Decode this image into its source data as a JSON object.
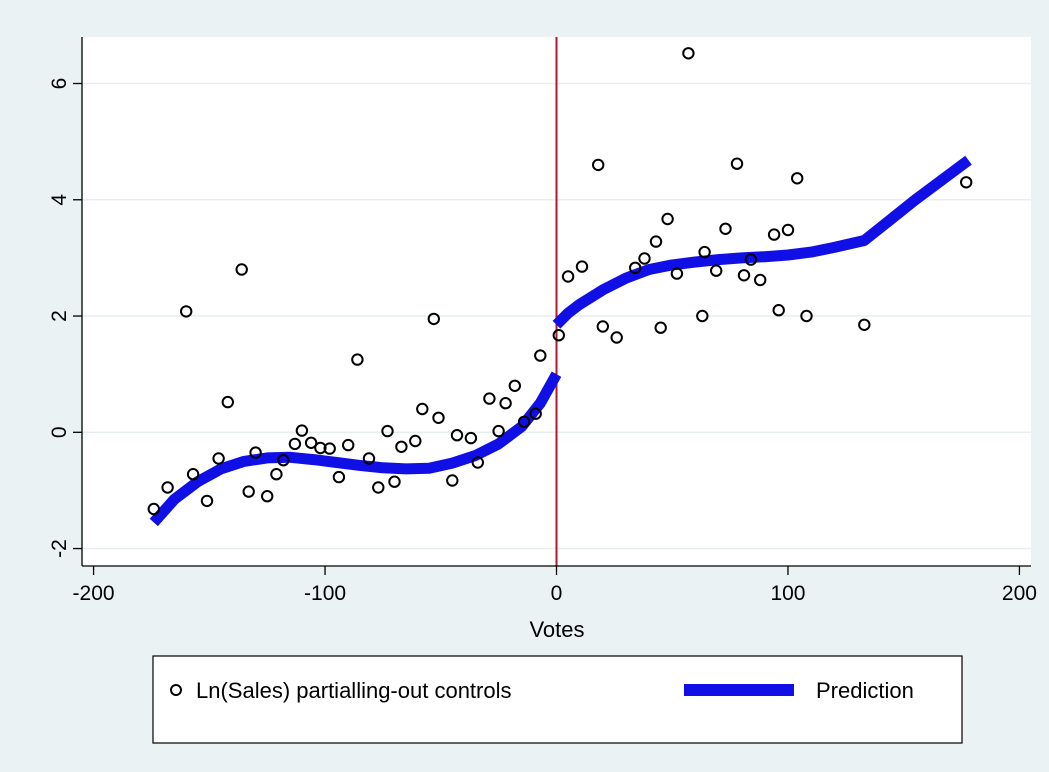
{
  "chart_data": {
    "type": "scatter",
    "xlabel": "Votes",
    "ylabel": "",
    "xlim": [
      -205,
      205
    ],
    "ylim": [
      -2.3,
      6.8
    ],
    "xticks": [
      -200,
      -100,
      0,
      100,
      200
    ],
    "yticks": [
      -2,
      0,
      2,
      4,
      6
    ],
    "grid": true,
    "cutoff_line": {
      "x": 0,
      "color": "#b2182b"
    },
    "legend": {
      "position": "bottom",
      "entries": [
        {
          "label": "Ln(Sales) partialling-out controls",
          "marker": "hollow-circle"
        },
        {
          "label": "Prediction",
          "marker": "thick-line"
        }
      ]
    },
    "series": [
      {
        "name": "Ln(Sales) partialling-out controls",
        "kind": "scatter",
        "color": "#000000",
        "points": [
          [
            -174,
            -1.32
          ],
          [
            -168,
            -0.95
          ],
          [
            -160,
            2.08
          ],
          [
            -157,
            -0.72
          ],
          [
            -151,
            -1.18
          ],
          [
            -146,
            -0.45
          ],
          [
            -142,
            0.52
          ],
          [
            -136,
            2.8
          ],
          [
            -133,
            -1.02
          ],
          [
            -130,
            -0.35
          ],
          [
            -125,
            -1.1
          ],
          [
            -121,
            -0.72
          ],
          [
            -118,
            -0.48
          ],
          [
            -113,
            -0.2
          ],
          [
            -110,
            0.03
          ],
          [
            -106,
            -0.18
          ],
          [
            -102,
            -0.27
          ],
          [
            -98,
            -0.28
          ],
          [
            -94,
            -0.77
          ],
          [
            -90,
            -0.22
          ],
          [
            -86,
            1.25
          ],
          [
            -81,
            -0.45
          ],
          [
            -77,
            -0.95
          ],
          [
            -73,
            0.02
          ],
          [
            -70,
            -0.85
          ],
          [
            -67,
            -0.25
          ],
          [
            -61,
            -0.15
          ],
          [
            -58,
            0.4
          ],
          [
            -53,
            1.95
          ],
          [
            -51,
            0.25
          ],
          [
            -45,
            -0.83
          ],
          [
            -43,
            -0.05
          ],
          [
            -37,
            -0.1
          ],
          [
            -34,
            -0.52
          ],
          [
            -29,
            0.58
          ],
          [
            -25,
            0.02
          ],
          [
            -22,
            0.5
          ],
          [
            -18,
            0.8
          ],
          [
            -14,
            0.18
          ],
          [
            -9,
            0.32
          ],
          [
            -7,
            1.32
          ],
          [
            1,
            1.67
          ],
          [
            5,
            2.68
          ],
          [
            11,
            2.85
          ],
          [
            18,
            4.6
          ],
          [
            20,
            1.82
          ],
          [
            26,
            1.63
          ],
          [
            34,
            2.83
          ],
          [
            38,
            2.99
          ],
          [
            43,
            3.28
          ],
          [
            45,
            1.8
          ],
          [
            48,
            3.67
          ],
          [
            52,
            2.73
          ],
          [
            57,
            6.52
          ],
          [
            63,
            2.0
          ],
          [
            64,
            3.1
          ],
          [
            69,
            2.78
          ],
          [
            73,
            3.5
          ],
          [
            78,
            4.62
          ],
          [
            81,
            2.7
          ],
          [
            84,
            2.97
          ],
          [
            88,
            2.62
          ],
          [
            94,
            3.4
          ],
          [
            96,
            2.1
          ],
          [
            100,
            3.48
          ],
          [
            104,
            4.37
          ],
          [
            108,
            2.0
          ],
          [
            133,
            1.85
          ],
          [
            177,
            4.3
          ]
        ]
      },
      {
        "name": "Prediction",
        "kind": "line",
        "color": "#1010e6",
        "segments": [
          [
            [
              -174,
              -1.55
            ],
            [
              -165,
              -1.15
            ],
            [
              -155,
              -0.85
            ],
            [
              -145,
              -0.63
            ],
            [
              -135,
              -0.5
            ],
            [
              -125,
              -0.44
            ],
            [
              -115,
              -0.43
            ],
            [
              -105,
              -0.47
            ],
            [
              -95,
              -0.52
            ],
            [
              -85,
              -0.57
            ],
            [
              -75,
              -0.61
            ],
            [
              -65,
              -0.63
            ],
            [
              -55,
              -0.62
            ],
            [
              -45,
              -0.53
            ],
            [
              -35,
              -0.4
            ],
            [
              -25,
              -0.2
            ],
            [
              -15,
              0.1
            ],
            [
              -7,
              0.5
            ],
            [
              0,
              1.0
            ]
          ],
          [
            [
              0,
              1.85
            ],
            [
              5,
              2.05
            ],
            [
              10,
              2.2
            ],
            [
              20,
              2.45
            ],
            [
              30,
              2.65
            ],
            [
              40,
              2.8
            ],
            [
              50,
              2.88
            ],
            [
              60,
              2.93
            ],
            [
              70,
              2.97
            ],
            [
              80,
              3.0
            ],
            [
              90,
              3.02
            ],
            [
              100,
              3.05
            ],
            [
              110,
              3.1
            ],
            [
              120,
              3.18
            ],
            [
              133,
              3.3
            ],
            [
              155,
              4.0
            ],
            [
              178,
              4.68
            ]
          ]
        ]
      }
    ]
  },
  "colors": {
    "page_background": "#eaf2f3",
    "plot_background": "#ffffff",
    "grid": "#e6eef0",
    "axis": "#000000"
  }
}
